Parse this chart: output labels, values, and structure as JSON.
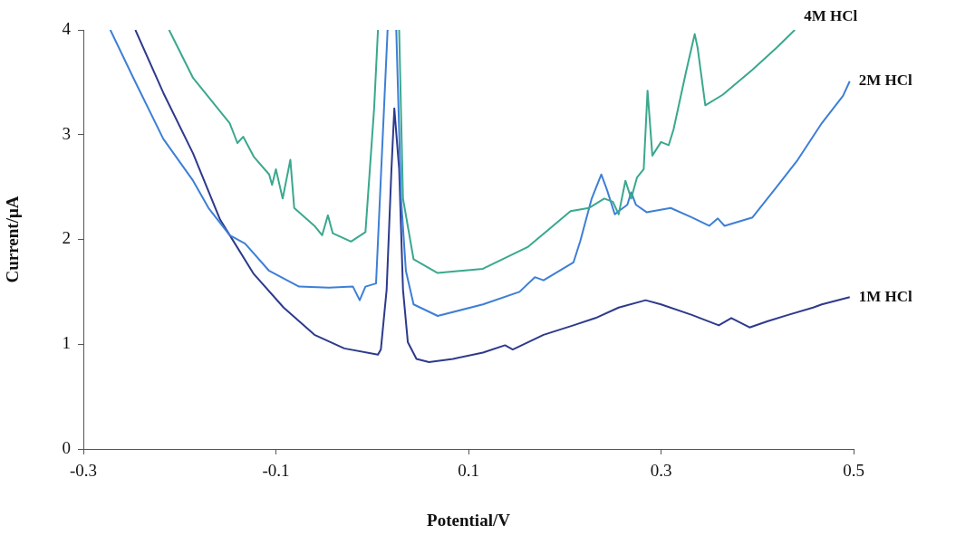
{
  "chart_data": {
    "type": "line",
    "xlabel": "Potential/V",
    "ylabel": "Current/μA",
    "xlim": [
      -0.3,
      0.5
    ],
    "xticks": [
      -0.3,
      -0.1,
      0.1,
      0.3,
      0.5
    ],
    "ylim": [
      0,
      4
    ],
    "yticks": [
      0,
      1,
      2,
      3,
      4
    ],
    "grid": false,
    "legend": false,
    "marker": "none",
    "line_style": "solid",
    "series": [
      {
        "name": "4M HCl",
        "color": "#3aa88e",
        "x": [
          -0.211,
          -0.186,
          -0.148,
          -0.14,
          -0.134,
          -0.123,
          -0.107,
          -0.104,
          -0.1,
          -0.093,
          -0.085,
          -0.081,
          -0.06,
          -0.052,
          -0.046,
          -0.041,
          -0.022,
          -0.007,
          0.002,
          0.006,
          0.017,
          0.028,
          0.032,
          0.043,
          0.068,
          0.115,
          0.162,
          0.206,
          0.225,
          0.241,
          0.25,
          0.256,
          0.263,
          0.269,
          0.275,
          0.282,
          0.286,
          0.291,
          0.3,
          0.308,
          0.313,
          0.326,
          0.335,
          0.338,
          0.346,
          0.364,
          0.395,
          0.42,
          0.439
        ],
        "values": [
          4.0,
          3.54,
          3.11,
          2.92,
          2.98,
          2.79,
          2.62,
          2.52,
          2.67,
          2.39,
          2.76,
          2.3,
          2.13,
          2.04,
          2.23,
          2.06,
          1.98,
          2.07,
          3.25,
          4.0,
          null,
          4.0,
          2.39,
          1.81,
          1.68,
          1.72,
          1.93,
          2.27,
          2.3,
          2.39,
          2.36,
          2.24,
          2.56,
          2.39,
          2.59,
          2.67,
          3.42,
          2.8,
          2.93,
          2.9,
          3.05,
          3.6,
          3.96,
          3.83,
          3.28,
          3.38,
          3.62,
          3.83,
          4.0
        ]
      },
      {
        "name": "2M HCl",
        "color": "#3d7fd6",
        "x": [
          -0.272,
          -0.248,
          -0.217,
          -0.186,
          -0.17,
          -0.148,
          -0.132,
          -0.107,
          -0.076,
          -0.045,
          -0.02,
          -0.013,
          -0.007,
          0.004,
          0.016,
          0.02,
          0.025,
          0.03,
          0.035,
          0.043,
          0.068,
          0.115,
          0.153,
          0.169,
          0.178,
          0.209,
          0.216,
          0.228,
          0.238,
          0.244,
          0.252,
          0.256,
          0.265,
          0.269,
          0.274,
          0.285,
          0.31,
          0.332,
          0.35,
          0.359,
          0.366,
          0.395,
          0.42,
          0.442,
          0.467,
          0.489,
          0.496
        ],
        "values": [
          4.0,
          3.54,
          2.96,
          2.56,
          2.3,
          2.04,
          1.96,
          1.7,
          1.55,
          1.54,
          1.55,
          1.42,
          1.55,
          1.58,
          4.0,
          null,
          4.0,
          2.39,
          1.7,
          1.38,
          1.27,
          1.38,
          1.5,
          1.64,
          1.61,
          1.78,
          1.98,
          2.39,
          2.62,
          2.47,
          2.24,
          2.27,
          2.33,
          2.45,
          2.33,
          2.26,
          2.3,
          2.21,
          2.13,
          2.2,
          2.13,
          2.21,
          2.5,
          2.76,
          3.11,
          3.37,
          3.51
        ]
      },
      {
        "name": "1M HCl",
        "color": "#2d3a8c",
        "x": [
          -0.246,
          -0.217,
          -0.186,
          -0.158,
          -0.123,
          -0.092,
          -0.06,
          -0.029,
          0.006,
          0.009,
          0.015,
          0.02,
          0.023,
          0.028,
          0.032,
          0.037,
          0.046,
          0.059,
          0.084,
          0.115,
          0.138,
          0.146,
          0.178,
          0.209,
          0.232,
          0.256,
          0.284,
          0.3,
          0.332,
          0.36,
          0.373,
          0.392,
          0.411,
          0.432,
          0.458,
          0.467,
          0.496
        ],
        "values": [
          4.0,
          3.4,
          2.82,
          2.19,
          1.67,
          1.35,
          1.09,
          0.96,
          0.9,
          0.95,
          1.52,
          2.67,
          3.25,
          2.67,
          1.52,
          1.02,
          0.86,
          0.83,
          0.86,
          0.92,
          0.99,
          0.95,
          1.09,
          1.18,
          1.25,
          1.35,
          1.42,
          1.38,
          1.28,
          1.18,
          1.25,
          1.16,
          1.22,
          1.28,
          1.35,
          1.38,
          1.45
        ]
      }
    ]
  }
}
